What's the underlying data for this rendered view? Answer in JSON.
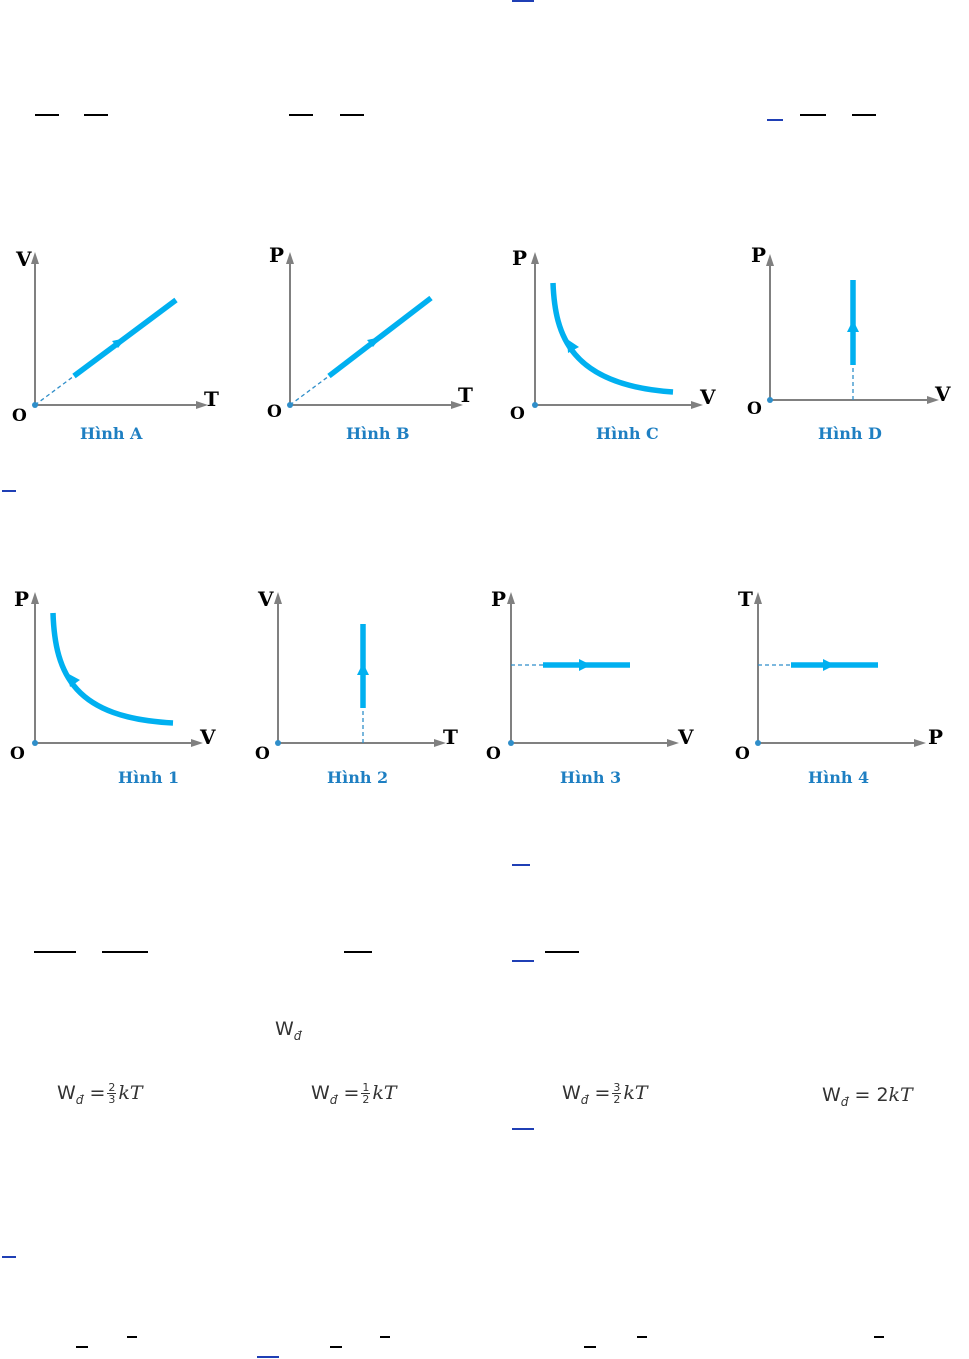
{
  "figures_top": [
    {
      "caption": "Hình A",
      "y_axis": "V",
      "x_axis": "T",
      "origin": "O"
    },
    {
      "caption": "Hình B",
      "y_axis": "P",
      "x_axis": "T",
      "origin": "O"
    },
    {
      "caption": "Hình C",
      "y_axis": "P",
      "x_axis": "V",
      "origin": "O"
    },
    {
      "caption": "Hình D",
      "y_axis": "P",
      "x_axis": "V",
      "origin": "O"
    }
  ],
  "figures_bottom": [
    {
      "caption": "Hình 1",
      "y_axis": "P",
      "x_axis": "V",
      "origin": "O"
    },
    {
      "caption": "Hình 2",
      "y_axis": "V",
      "x_axis": "T",
      "origin": "O"
    },
    {
      "caption": "Hình 3",
      "y_axis": "P",
      "x_axis": "V",
      "origin": "O"
    },
    {
      "caption": "Hình 4",
      "y_axis": "T",
      "x_axis": "P",
      "origin": "O"
    }
  ],
  "energy": {
    "symbol": "W",
    "subscript": "đ",
    "options": [
      {
        "lhs": "W",
        "sub": "đ",
        "eq": "=",
        "num": "2",
        "den": "3",
        "rhs": "kT"
      },
      {
        "lhs": "W",
        "sub": "đ",
        "eq": "=",
        "num": "1",
        "den": "2",
        "rhs": "kT"
      },
      {
        "lhs": "W",
        "sub": "đ",
        "eq": "=",
        "num": "3",
        "den": "2",
        "rhs": "kT"
      },
      {
        "lhs": "W",
        "sub": "đ",
        "eq": "=",
        "coef": "2",
        "rhs": "kT"
      }
    ]
  },
  "colors": {
    "process": "#00b0f0",
    "axis": "#808080",
    "caption": "#1e7fc2",
    "link": "#1f3fb5"
  }
}
